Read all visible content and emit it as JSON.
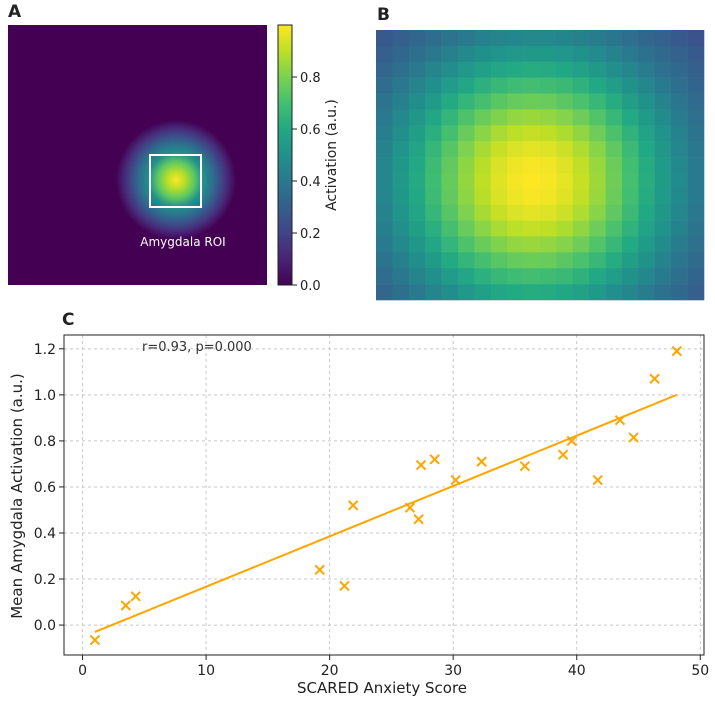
{
  "panel_labels": {
    "a": "A",
    "b": "B",
    "c": "C"
  },
  "colors": {
    "accent": "#FFA500",
    "grid": "#c8c8c8",
    "axis": "#222222",
    "viridis": [
      "#440154",
      "#3b528b",
      "#21918c",
      "#5ec962",
      "#fde725"
    ]
  },
  "chart_data": [
    {
      "type": "heatmap",
      "panel": "A",
      "description_label": "Amygdala ROI",
      "colorbar": {
        "label": "Activation (a.u.)",
        "range": [
          0,
          1
        ],
        "ticks": [
          0.0,
          0.2,
          0.4,
          0.6,
          0.8
        ],
        "tick_labels": [
          "0.0",
          "0.2",
          "0.4",
          "0.6",
          "0.8"
        ]
      }
    },
    {
      "type": "heatmap",
      "panel": "B"
    },
    {
      "type": "scatter",
      "panel": "C",
      "xlabel": "SCARED Anxiety Score",
      "ylabel": "Mean Amygdala Activation (a.u.)",
      "xlim": [
        -1.5,
        50.3
      ],
      "ylim": [
        -0.13,
        1.26
      ],
      "xticks": [
        0,
        10,
        20,
        30,
        40,
        50
      ],
      "yticks": [
        0.0,
        0.2,
        0.4,
        0.6,
        0.8,
        1.0,
        1.2
      ],
      "xtick_labels": [
        "0",
        "10",
        "20",
        "30",
        "40",
        "50"
      ],
      "ytick_labels": [
        "0.0",
        "0.2",
        "0.4",
        "0.6",
        "0.8",
        "1.0",
        "1.2"
      ],
      "annotation": "r=0.93, p=0.000",
      "points": {
        "x": [
          1.0,
          3.5,
          4.3,
          19.2,
          21.2,
          21.9,
          26.5,
          27.2,
          27.4,
          28.5,
          30.2,
          32.3,
          35.8,
          38.9,
          39.6,
          41.7,
          43.5,
          44.6,
          46.3,
          48.1
        ],
        "y": [
          -0.065,
          0.085,
          0.125,
          0.24,
          0.17,
          0.52,
          0.51,
          0.46,
          0.695,
          0.72,
          0.63,
          0.71,
          0.69,
          0.74,
          0.8,
          0.63,
          0.89,
          0.815,
          1.07,
          1.19
        ]
      },
      "fit_line": {
        "x": [
          1.0,
          48.1
        ],
        "y": [
          -0.03,
          1.0
        ]
      }
    }
  ]
}
